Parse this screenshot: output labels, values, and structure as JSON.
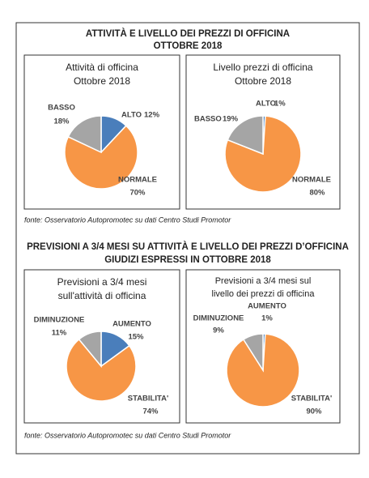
{
  "sections": [
    {
      "title": [
        "ATTIVITÀ E LIVELLO DEI PREZZI DI OFFICINA",
        "OTTOBRE 2018"
      ],
      "source": "fonte: Osservatorio Autopromotec su dati Centro Studi Promotor"
    },
    {
      "title": [
        "PREVISIONI A 3/4 MESI SU ATTIVITÀ E LIVELLO DEI PREZZI D’OFFICINA",
        "GIUDIZI ESPRESSI IN OTTOBRE 2018"
      ],
      "source": "fonte: Osservatorio Autopromotec su dati Centro Studi Promotor"
    }
  ],
  "chart_data": [
    {
      "type": "pie",
      "title": [
        "Attività di officina",
        "Ottobre 2018"
      ],
      "categories": [
        "ALTO",
        "NORMALE",
        "BASSO"
      ],
      "values": [
        12,
        70,
        18
      ],
      "value_labels": [
        "12%",
        "70%",
        "18%"
      ],
      "colors": [
        "#4a7ebb",
        "#f79646",
        "#a5a5a5"
      ]
    },
    {
      "type": "pie",
      "title": [
        "Livello prezzi di officina",
        "Ottobre 2018"
      ],
      "categories": [
        "ALTO",
        "NORMALE",
        "BASSO"
      ],
      "values": [
        1,
        80,
        19
      ],
      "value_labels": [
        "1%",
        "80%",
        "19%"
      ],
      "colors": [
        "#4a7ebb",
        "#f79646",
        "#a5a5a5"
      ]
    },
    {
      "type": "pie",
      "title": [
        "Previsioni a 3/4 mesi",
        "sull'attività di officina"
      ],
      "categories": [
        "AUMENTO",
        "STABILITA'",
        "DIMINUZIONE"
      ],
      "values": [
        15,
        74,
        11
      ],
      "value_labels": [
        "15%",
        "74%",
        "11%"
      ],
      "colors": [
        "#4a7ebb",
        "#f79646",
        "#a5a5a5"
      ]
    },
    {
      "type": "pie",
      "title": [
        "Previsioni a 3/4 mesi sul",
        "livello dei prezzi di officina"
      ],
      "categories": [
        "AUMENTO",
        "STABILITA'",
        "DIMINUZIONE"
      ],
      "values": [
        1,
        90,
        9
      ],
      "value_labels": [
        "1%",
        "90%",
        "9%"
      ],
      "colors": [
        "#4a7ebb",
        "#f79646",
        "#a5a5a5"
      ]
    }
  ]
}
